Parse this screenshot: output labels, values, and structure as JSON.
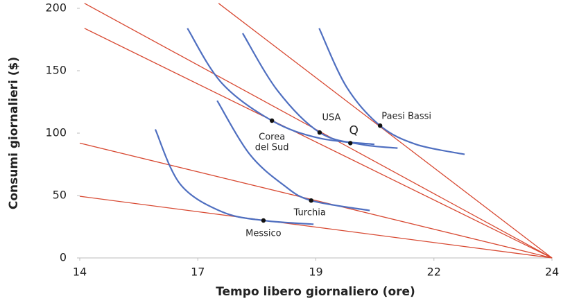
{
  "chart_data": {
    "type": "line",
    "x_label": "Tempo libero giornaliero (ore)",
    "y_label": "Consumi giornalieri ($)",
    "xlim": [
      14,
      24
    ],
    "ylim": [
      0,
      200
    ],
    "xticks": [
      14,
      {
        "value": 16.5,
        "label": "17"
      },
      19,
      {
        "value": 21.5,
        "label": "22"
      },
      24
    ],
    "yticks": [
      0,
      50,
      100,
      150,
      200
    ],
    "budget_color": "#d84a33",
    "curve_color": "#4f6fc0",
    "budget_lines": [
      {
        "x": [
          14,
          24
        ],
        "y": [
          49.4,
          0
        ]
      },
      {
        "x": [
          14,
          24
        ],
        "y": [
          92,
          0
        ]
      },
      {
        "x": [
          14.1,
          24
        ],
        "y": [
          184,
          0
        ]
      },
      {
        "x": [
          14.1,
          24
        ],
        "y": [
          204,
          0
        ]
      },
      {
        "x": [
          16.94,
          24
        ],
        "y": [
          204,
          0
        ]
      }
    ],
    "indifference_curves": [
      {
        "x": [
          15.6,
          16.13,
          17.01,
          17.89,
          18.95
        ],
        "y": [
          103,
          59,
          37,
          30,
          27
        ]
      },
      {
        "x": [
          16.91,
          17.6,
          18.33,
          18.9,
          20.14
        ],
        "y": [
          126,
          83,
          58,
          46,
          38
        ]
      },
      {
        "x": [
          16.28,
          17.01,
          18.07,
          19.07,
          20.24
        ],
        "y": [
          184,
          140,
          110,
          96,
          91
        ]
      },
      {
        "x": [
          17.45,
          18.19,
          19.08,
          19.95,
          20.73
        ],
        "y": [
          180,
          134,
          100.5,
          91,
          88
        ]
      },
      {
        "x": [
          19.07,
          19.65,
          20.36,
          21.12,
          22.15
        ],
        "y": [
          184,
          137,
          106,
          91,
          83
        ]
      }
    ],
    "points": [
      {
        "label": [
          "Messico"
        ],
        "x": 17.89,
        "y": 30
      },
      {
        "label": [
          "Turchia"
        ],
        "x": 18.9,
        "y": 46
      },
      {
        "label": [
          "Corea",
          "del Sud"
        ],
        "x": 18.07,
        "y": 110
      },
      {
        "label": [
          "USA"
        ],
        "x": 19.08,
        "y": 100.5
      },
      {
        "label": [
          "Q"
        ],
        "x": 19.73,
        "y": 92
      },
      {
        "label": [
          "Paesi Bassi"
        ],
        "x": 20.36,
        "y": 106
      }
    ]
  }
}
